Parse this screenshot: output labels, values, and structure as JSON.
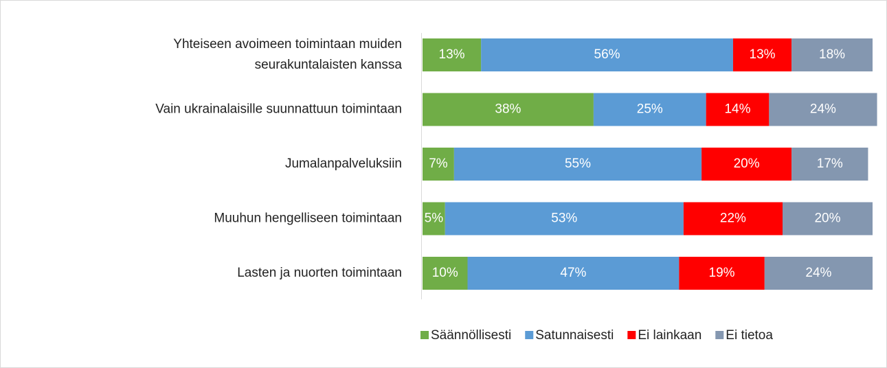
{
  "chart_data": {
    "type": "stacked_bar_horizontal",
    "categories": [
      "Yhteiseen avoimeen toimintaan muiden\nseurakuntalaisten kanssa",
      "Vain ukrainalaisille suunnattuun toimintaan",
      "Jumalanpalveluksiin",
      "Muuhun hengelliseen toimintaan",
      "Lasten ja nuorten toimintaan"
    ],
    "series": [
      {
        "name": "Säännöllisesti",
        "color": "#70ad47",
        "values": [
          13,
          38,
          7,
          5,
          10
        ],
        "value_labels": [
          "13%",
          "38%",
          "7%",
          "5%",
          "10%"
        ]
      },
      {
        "name": "Satunnaisesti",
        "color": "#5b9bd5",
        "values": [
          56,
          25,
          55,
          53,
          47
        ],
        "value_labels": [
          "56%",
          "25%",
          "55%",
          "53%",
          "47%"
        ]
      },
      {
        "name": "Ei lainkaan",
        "color": "#ff0000",
        "values": [
          13,
          14,
          20,
          22,
          19
        ],
        "value_labels": [
          "13%",
          "14%",
          "20%",
          "22%",
          "19%"
        ]
      },
      {
        "name": "Ei tietoa",
        "color": "#8497b0",
        "values": [
          18,
          24,
          17,
          20,
          24
        ],
        "value_labels": [
          "18%",
          "24%",
          "17%",
          "20%",
          "24%"
        ]
      }
    ],
    "xlim": [
      0,
      100
    ],
    "legend": "bottom"
  }
}
